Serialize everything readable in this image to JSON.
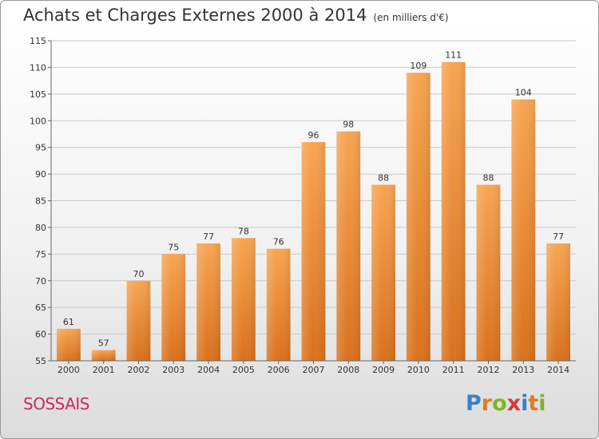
{
  "chart_data": {
    "type": "bar",
    "title": "Achats et Charges Externes 2000 à 2014",
    "subtitle": "(en milliers d'€)",
    "categories": [
      "2000",
      "2001",
      "2002",
      "2003",
      "2004",
      "2005",
      "2006",
      "2007",
      "2008",
      "2009",
      "2010",
      "2011",
      "2012",
      "2013",
      "2014"
    ],
    "values": [
      61,
      57,
      70,
      75,
      77,
      78,
      76,
      96,
      98,
      88,
      109,
      111,
      88,
      104,
      77
    ],
    "ylim": [
      55,
      115
    ],
    "yticks": [
      55,
      60,
      65,
      70,
      75,
      80,
      85,
      90,
      95,
      100,
      105,
      110,
      115
    ],
    "grid": true,
    "colors": {
      "bar_light": "#f7a552",
      "bar_dark": "#d9711c",
      "grid": "#c8c8c8"
    }
  },
  "commune": "SOSSAIS",
  "logo": {
    "text": "Proxiti",
    "letters": [
      {
        "c": "P",
        "color": "#3a7fcf"
      },
      {
        "c": "r",
        "color": "#e07b1c"
      },
      {
        "c": "o",
        "color": "#7fb42a"
      },
      {
        "c": "x",
        "color": "#d63a3a"
      },
      {
        "c": "i",
        "color": "#3a7fcf"
      },
      {
        "c": "t",
        "color": "#e07b1c"
      },
      {
        "c": "i",
        "color": "#7fb42a"
      }
    ]
  }
}
